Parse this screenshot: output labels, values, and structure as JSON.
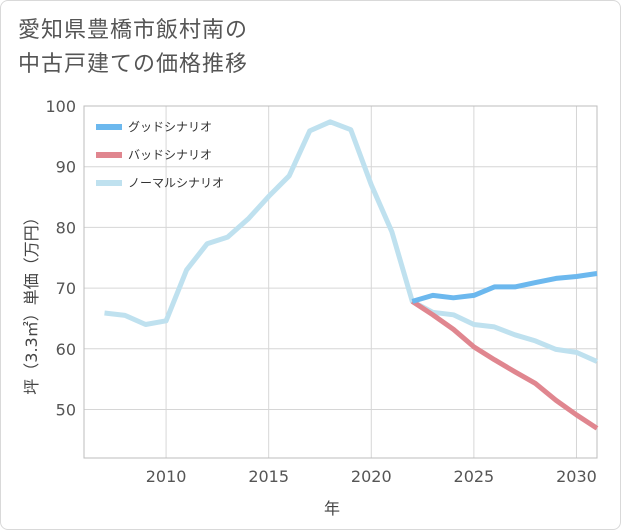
{
  "title_lines": [
    "愛知県豊橋市飯村南の",
    "中古戸建ての価格推移"
  ],
  "chart_data": {
    "type": "line",
    "xlabel": "年",
    "ylabel": "坪（3.3㎡）単価（万円）",
    "xlim": [
      2006,
      2031
    ],
    "ylim": [
      42,
      100
    ],
    "x_ticks": [
      2010,
      2015,
      2020,
      2025,
      2030
    ],
    "y_ticks": [
      50,
      60,
      70,
      80,
      90,
      100
    ],
    "grid": true,
    "legend_position": "top-left",
    "series": [
      {
        "name": "グッドシナリオ",
        "color": "#6cb8ee",
        "x": [
          2022,
          2023,
          2024,
          2025,
          2026,
          2027,
          2028,
          2029,
          2030,
          2031
        ],
        "y": [
          67.8,
          68.8,
          68.4,
          68.8,
          70.2,
          70.2,
          70.9,
          71.6,
          71.9,
          72.4
        ]
      },
      {
        "name": "バッドシナリオ",
        "color": "#e0868f",
        "x": [
          2022,
          2023,
          2024,
          2025,
          2026,
          2027,
          2028,
          2029,
          2030,
          2031
        ],
        "y": [
          67.8,
          65.6,
          63.2,
          60.3,
          58.2,
          56.2,
          54.3,
          51.5,
          49.1,
          46.9
        ]
      },
      {
        "name": "ノーマルシナリオ",
        "color": "#bfe1ef",
        "x": [
          2007,
          2008,
          2009,
          2010,
          2011,
          2012,
          2013,
          2014,
          2015,
          2016,
          2017,
          2018,
          2019,
          2020,
          2021,
          2022,
          2023,
          2024,
          2025,
          2026,
          2027,
          2028,
          2029,
          2030,
          2031
        ],
        "y": [
          65.9,
          65.5,
          64.0,
          64.6,
          73.0,
          77.3,
          78.4,
          81.4,
          85.1,
          88.5,
          95.9,
          97.4,
          96.1,
          87.0,
          79.3,
          67.8,
          66.0,
          65.6,
          64.0,
          63.6,
          62.3,
          61.3,
          59.9,
          59.4,
          57.9
        ]
      }
    ]
  }
}
